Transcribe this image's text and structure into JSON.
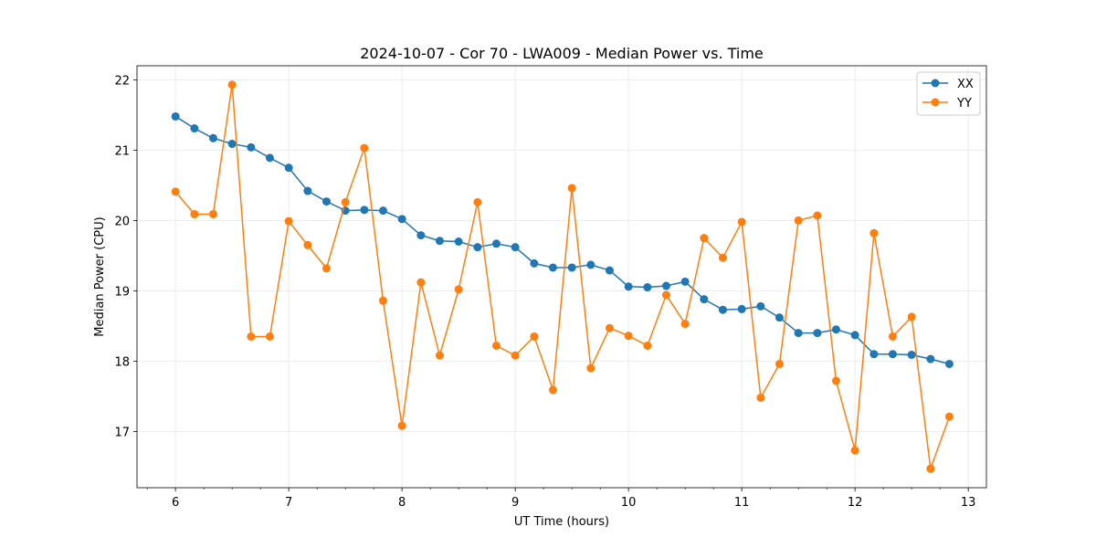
{
  "chart_data": {
    "type": "line",
    "title": "2024-10-07 - Cor 70 - LWA009 - Median Power vs. Time",
    "xlabel": "UT Time (hours)",
    "ylabel": "Median Power (CPU)",
    "xlim": [
      5.66,
      13.16
    ],
    "ylim": [
      16.2,
      22.2
    ],
    "xticks": [
      6,
      7,
      8,
      9,
      10,
      11,
      12,
      13
    ],
    "yticks": [
      17,
      18,
      19,
      20,
      21,
      22
    ],
    "grid": true,
    "legend": "top-right",
    "x": [
      6.0,
      6.167,
      6.333,
      6.5,
      6.667,
      6.833,
      7.0,
      7.167,
      7.333,
      7.5,
      7.667,
      7.833,
      8.0,
      8.167,
      8.333,
      8.5,
      8.667,
      8.833,
      9.0,
      9.167,
      9.333,
      9.5,
      9.667,
      9.833,
      10.0,
      10.167,
      10.333,
      10.5,
      10.667,
      10.833,
      11.0,
      11.167,
      11.333,
      11.5,
      11.667,
      11.833,
      12.0,
      12.167,
      12.333,
      12.5,
      12.667,
      12.833
    ],
    "series": [
      {
        "name": "XX",
        "color": "#1f77b4",
        "values": [
          21.48,
          21.31,
          21.17,
          21.09,
          21.04,
          20.89,
          20.75,
          20.42,
          20.27,
          20.14,
          20.15,
          20.14,
          20.02,
          19.79,
          19.71,
          19.7,
          19.62,
          19.67,
          19.62,
          19.39,
          19.33,
          19.33,
          19.37,
          19.29,
          19.06,
          19.05,
          19.07,
          19.13,
          18.88,
          18.73,
          18.74,
          18.78,
          18.62,
          18.4,
          18.4,
          18.45,
          18.37,
          18.1,
          18.1,
          18.09,
          18.03,
          17.96
        ]
      },
      {
        "name": "YY",
        "color": "#ff7f0e",
        "values": [
          20.41,
          20.09,
          20.09,
          21.93,
          18.35,
          18.35,
          19.99,
          19.65,
          19.32,
          20.26,
          21.03,
          18.86,
          17.08,
          19.12,
          18.08,
          19.02,
          20.26,
          18.22,
          18.08,
          18.35,
          17.59,
          20.46,
          17.9,
          18.47,
          18.36,
          18.22,
          18.94,
          18.53,
          19.75,
          19.47,
          19.98,
          17.48,
          17.96,
          20.0,
          20.07,
          17.72,
          16.73,
          19.82,
          18.35,
          18.63,
          16.47,
          17.21
        ]
      }
    ]
  }
}
